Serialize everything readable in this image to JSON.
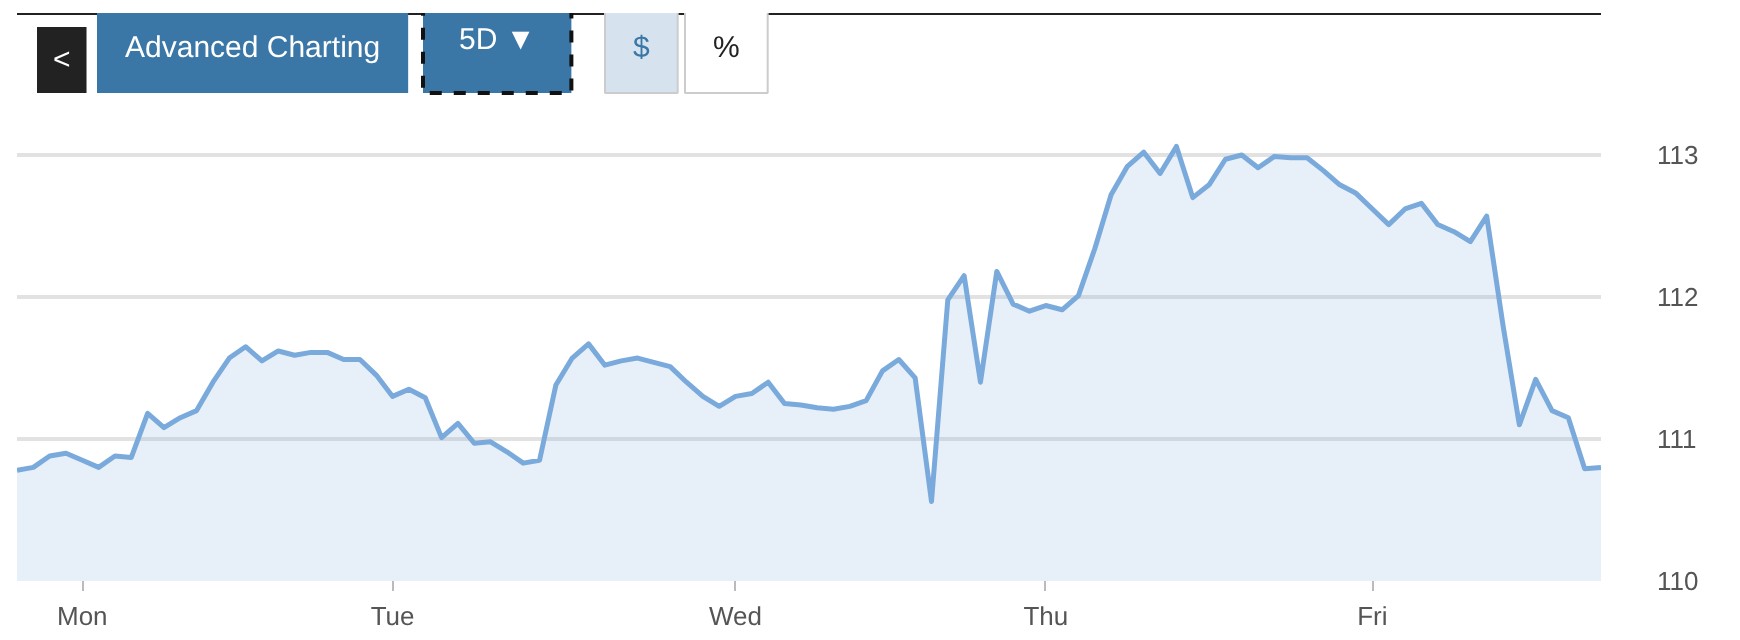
{
  "chart_data": {
    "type": "area",
    "annotations": [
      "<",
      "Advanced Charting",
      "5D ▼",
      "$",
      "%"
    ],
    "categories": [
      null,
      null,
      null,
      null,
      "Mon",
      null,
      null,
      null,
      null,
      null,
      null,
      null,
      null,
      null,
      null,
      null,
      null,
      null,
      null,
      null,
      null,
      null,
      null,
      "Tue",
      null,
      null,
      null,
      null,
      null,
      null,
      null,
      null,
      null,
      null,
      null,
      null,
      null,
      null,
      null,
      null,
      null,
      null,
      null,
      null,
      "Wed",
      null,
      null,
      null,
      null,
      null,
      null,
      null,
      null,
      null,
      null,
      null,
      null,
      null,
      null,
      null,
      null,
      null,
      null,
      "Thu",
      null,
      null,
      null,
      null,
      null,
      null,
      null,
      null,
      null,
      null,
      null,
      null,
      null,
      null,
      null,
      null,
      null,
      null,
      null,
      "Fri",
      null,
      null,
      null,
      null,
      null,
      null,
      null,
      null,
      null,
      null,
      null,
      null,
      null,
      null
    ],
    "series": [
      {
        "color": "#7aaadb",
        "values": [
          110.78,
          110.8,
          110.88,
          110.9,
          110.85,
          110.8,
          110.88,
          110.87,
          111.18,
          111.08,
          111.15,
          111.2,
          111.4,
          111.57,
          111.65,
          111.55,
          111.62,
          111.59,
          111.61,
          111.61,
          111.56,
          111.56,
          111.45,
          111.3,
          111.35,
          111.29,
          111.01,
          111.11,
          110.97,
          110.98,
          110.91,
          110.83,
          110.85,
          111.38,
          111.57,
          111.67,
          111.52,
          111.55,
          111.57,
          111.54,
          111.51,
          111.4,
          111.3,
          111.23,
          111.3,
          111.32,
          111.4,
          111.25,
          111.24,
          111.22,
          111.21,
          111.23,
          111.27,
          111.48,
          111.56,
          111.43,
          110.56,
          111.98,
          112.15,
          111.4,
          112.18,
          111.95,
          111.9,
          111.94,
          111.91,
          112.01,
          112.34,
          112.72,
          112.92,
          113.02,
          112.87,
          113.06,
          112.7,
          112.79,
          112.97,
          113.0,
          112.91,
          112.99,
          112.98,
          112.98,
          112.89,
          112.79,
          112.73,
          112.62,
          112.51,
          112.62,
          112.66,
          112.51,
          112.46,
          112.39,
          112.57,
          111.8,
          111.1,
          111.42,
          111.2,
          111.15,
          110.79,
          110.8
        ]
      }
    ],
    "ylim": [
      110,
      114
    ],
    "yticks": [
      110,
      111,
      112,
      113
    ],
    "grid": "y"
  }
}
